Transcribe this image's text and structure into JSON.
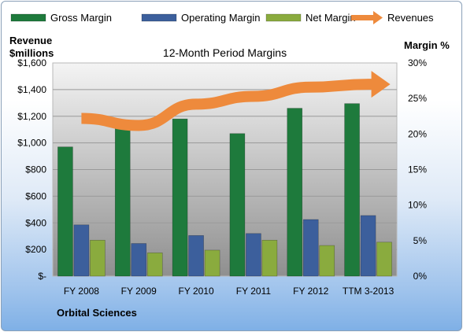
{
  "chart_data": {
    "type": "bar",
    "title": "12-Month Period Margins",
    "categories": [
      "FY 2008",
      "FY 2009",
      "FY 2010",
      "FY 2011",
      "FY 2012",
      "TTM 3-2013"
    ],
    "series": [
      {
        "name": "Gross Margin",
        "kind": "bar",
        "axis": "left",
        "color": "#1e7a3c",
        "values": [
          970,
          1110,
          1180,
          1070,
          1260,
          1295
        ]
      },
      {
        "name": "Operating Margin",
        "kind": "bar",
        "axis": "left",
        "color": "#3c5f9c",
        "values": [
          385,
          245,
          305,
          320,
          425,
          455
        ]
      },
      {
        "name": "Net Margin",
        "kind": "bar",
        "axis": "left",
        "color": "#8aab3e",
        "values": [
          270,
          175,
          195,
          270,
          230,
          255
        ]
      },
      {
        "name": "Revenues",
        "kind": "line-arrow",
        "axis": "right",
        "color": "#ee8a3c",
        "values": [
          22.2,
          21.2,
          24.2,
          25.3,
          26.6,
          27.0
        ]
      }
    ],
    "ylabel_left_line1": "Revenue",
    "ylabel_left_line2": "$millions",
    "ylabel_right": "Margin %",
    "ylim_left": [
      0,
      1600
    ],
    "yticks_left": [
      "$-",
      "$200",
      "$400",
      "$600",
      "$800",
      "$1,000",
      "$1,200",
      "$1,400",
      "$1,600"
    ],
    "ylim_right": [
      0,
      30
    ],
    "yticks_right": [
      "0%",
      "5%",
      "10%",
      "15%",
      "20%",
      "25%",
      "30%"
    ],
    "grid": true,
    "legend_placement": "top",
    "footer": "Orbital Sciences"
  }
}
